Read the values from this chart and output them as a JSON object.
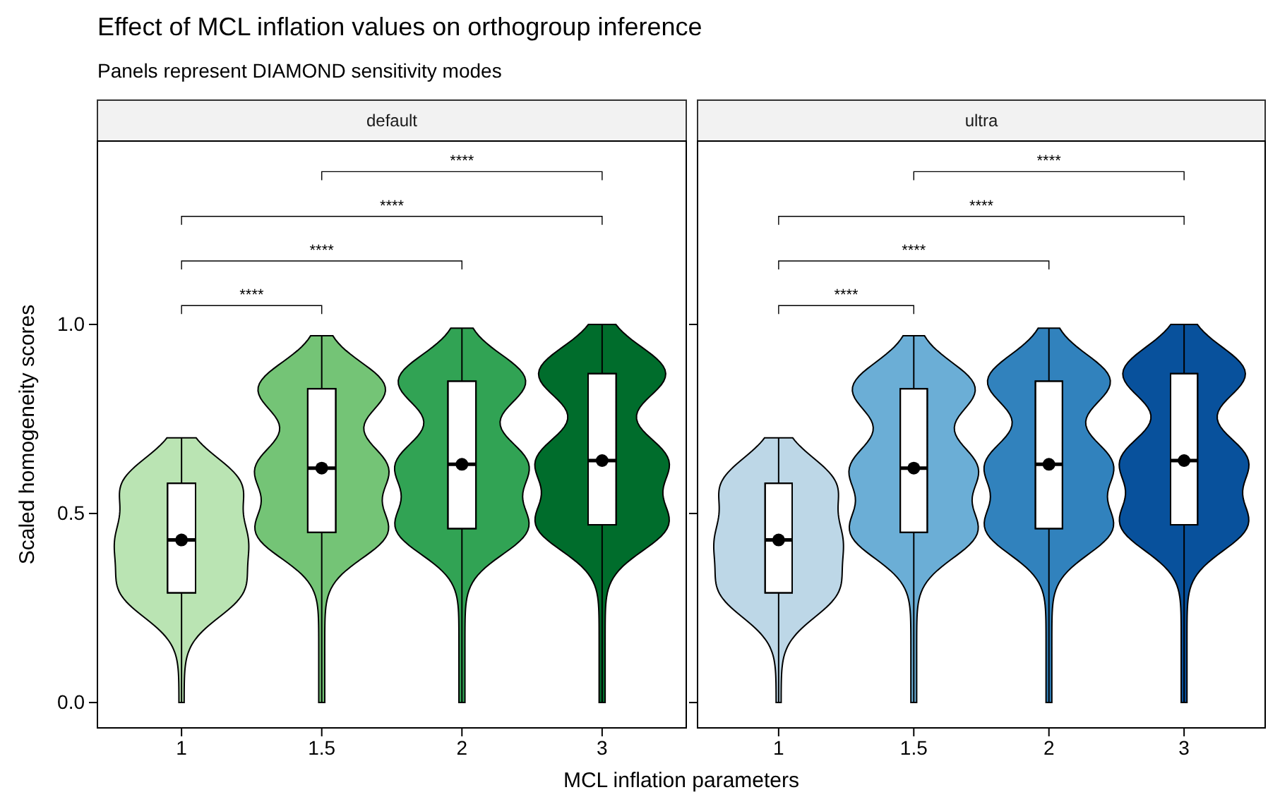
{
  "chart_data": [
    {
      "type": "box",
      "title": "Effect of MCL inflation values on orthogroup inference",
      "subtitle": "Panels represent DIAMOND sensitivity modes",
      "legend_title": "default",
      "xlabel": "MCL inflation parameters",
      "ylabel": "Scaled homogeneity scores",
      "categories": [
        "1",
        "1.5",
        "2",
        "3"
      ],
      "colors": [
        "#bae4b3",
        "#74c476",
        "#31a354",
        "#006d2c"
      ],
      "boxes": [
        {
          "low": 0,
          "q1": 0.29,
          "median": 0.43,
          "q3": 0.58,
          "high": 0.7,
          "mean": 0.43
        },
        {
          "low": 0,
          "q1": 0.45,
          "median": 0.62,
          "q3": 0.83,
          "high": 0.97,
          "mean": 0.62
        },
        {
          "low": 0,
          "q1": 0.46,
          "median": 0.63,
          "q3": 0.85,
          "high": 0.99,
          "mean": 0.63
        },
        {
          "low": 0,
          "q1": 0.47,
          "median": 0.64,
          "q3": 0.87,
          "high": 1.0,
          "mean": 0.64
        }
      ],
      "ylim": [
        -0.067,
        1.485
      ],
      "yticks": [
        {
          "value": 0,
          "label": "0.0"
        },
        {
          "value": 0.5,
          "label": "0.5"
        },
        {
          "value": 1,
          "label": "1.0"
        }
      ],
      "annotations": [
        "****",
        "****",
        "****",
        "****"
      ]
    },
    {
      "type": "box",
      "legend_title": "ultra",
      "categories": [
        "1",
        "1.5",
        "2",
        "3"
      ],
      "colors": [
        "#bdd7e7",
        "#6baed6",
        "#3182bd",
        "#08519c"
      ],
      "boxes": [
        {
          "low": 0,
          "q1": 0.29,
          "median": 0.43,
          "q3": 0.58,
          "high": 0.7,
          "mean": 0.43
        },
        {
          "low": 0,
          "q1": 0.45,
          "median": 0.62,
          "q3": 0.83,
          "high": 0.97,
          "mean": 0.62
        },
        {
          "low": 0,
          "q1": 0.46,
          "median": 0.63,
          "q3": 0.85,
          "high": 0.99,
          "mean": 0.63
        },
        {
          "low": 0,
          "q1": 0.47,
          "median": 0.64,
          "q3": 0.87,
          "high": 1.0,
          "mean": 0.64
        }
      ],
      "ylim": [
        -0.067,
        1.485
      ],
      "yticks": [
        {
          "value": 0,
          "label": null
        },
        {
          "value": 0.5,
          "label": null
        },
        {
          "value": 1,
          "label": null
        }
      ],
      "tick_labels": "x",
      "annotations": [
        "****",
        "****",
        "****",
        "****"
      ]
    }
  ]
}
